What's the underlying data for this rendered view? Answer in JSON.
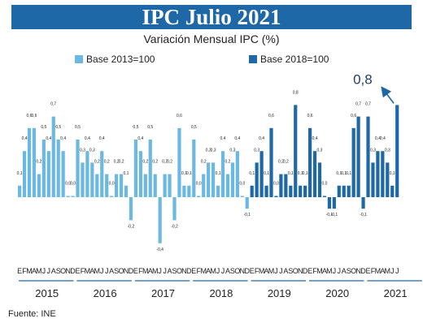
{
  "banner_title": "IPC Julio 2021",
  "chart_data": {
    "type": "bar",
    "title": "IPC Julio 2021",
    "subtitle": "Variación Mensual IPC (%)",
    "source": "Fuente: INE",
    "callout_value": "0,8",
    "colors": {
      "base_2013": "#6bb8e3",
      "base_2018": "#1e68a8",
      "banner": "#1e68a8",
      "arrow": "#1e68a8"
    },
    "ylim": [
      -0.5,
      0.9
    ],
    "legend": [
      {
        "name": "Base 2013=100",
        "color": "#6bb8e3"
      },
      {
        "name": "Base 2018=100",
        "color": "#1e68a8"
      }
    ],
    "month_letters": [
      "E",
      "F",
      "M",
      "A",
      "M",
      "J",
      "J",
      "A",
      "S",
      "O",
      "N",
      "D"
    ],
    "years": [
      {
        "year": "2015",
        "base": "2013",
        "values": [
          0.1,
          0.4,
          0.6,
          0.6,
          0.2,
          0.5,
          0.4,
          0.7,
          0.5,
          0.4,
          0.0,
          0.0
        ]
      },
      {
        "year": "2016",
        "base": "2013",
        "values": [
          0.5,
          0.3,
          0.4,
          0.3,
          0.2,
          0.4,
          0.2,
          0.0,
          0.2,
          0.2,
          0.1,
          -0.2
        ]
      },
      {
        "year": "2017",
        "base": "2013",
        "values": [
          0.5,
          0.4,
          0.2,
          0.5,
          0.2,
          -0.4,
          0.2,
          0.2,
          -0.2,
          0.6,
          0.1,
          0.1
        ]
      },
      {
        "year": "2018",
        "base": "2013",
        "values": [
          0.5,
          0.0,
          0.2,
          0.3,
          0.3,
          0.1,
          0.4,
          0.2,
          0.3,
          0.4,
          0.0,
          -0.1
        ]
      },
      {
        "year": "2019",
        "base": "2018",
        "values": [
          0.1,
          0.3,
          0.4,
          0.1,
          0.6,
          0.0,
          0.2,
          0.2,
          0.1,
          0.8,
          0.1,
          0.1
        ]
      },
      {
        "year": "2020",
        "base": "2018",
        "values": [
          0.6,
          0.4,
          0.3,
          0.0,
          -0.1,
          -0.1,
          0.1,
          0.1,
          0.1,
          0.6,
          0.7,
          -0.1
        ]
      },
      {
        "year": "2021",
        "base": "2018",
        "values": [
          0.7,
          0.3,
          0.4,
          0.4,
          0.3,
          0.1,
          0.8
        ]
      }
    ],
    "value_labels": {
      "2015": [
        "0,1",
        "0,4",
        "0,6",
        "0,6",
        "0,2",
        "0,5",
        "0,4",
        "0,7",
        "0,5",
        "0,4",
        "0,0",
        "0,0"
      ],
      "2016": [
        "0,5",
        "0,3",
        "0,4",
        "0,3",
        "0,2",
        "0,4",
        "0,2",
        "0,0",
        "0,2",
        "0,2",
        "0,1",
        "-0,2"
      ],
      "2017": [
        "0,5",
        "0,4",
        "0,2",
        "0,5",
        "0,2",
        "-0,4",
        "0,2",
        "0,2",
        "-0,2",
        "0,6",
        "0,1",
        "0,1"
      ],
      "2018": [
        "0,5",
        "0,0",
        "0,2",
        "0,3",
        "0,3",
        "0,1",
        "0,4",
        "0,2",
        "0,3",
        "0,4",
        "0,0",
        "-0,1"
      ],
      "2019": [
        "0,1",
        "0,3",
        "0,4",
        "0,1",
        "0,6",
        "0,0",
        "0,2",
        "0,2",
        "0,1",
        "0,8",
        "0,1",
        "0,1"
      ],
      "2020": [
        "0,6",
        "0,4",
        "0,3",
        "0,0",
        "-0,1",
        "-0,1",
        "0,1",
        "0,1",
        "0,1",
        "0,6",
        "0,7",
        "-0,1"
      ],
      "2021": [
        "0,7",
        "0,3",
        "0,4",
        "0,4",
        "0,3",
        "0,1",
        ""
      ]
    }
  }
}
